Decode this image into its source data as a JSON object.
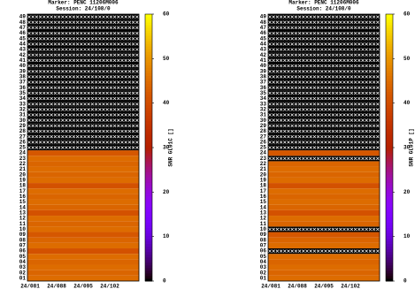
{
  "chart_data": [
    {
      "type": "heatmap",
      "title": "Marker: PENC 11206M006",
      "subtitle": "Session: 24/108/0",
      "y_categories": [
        "01",
        "02",
        "03",
        "04",
        "05",
        "06",
        "07",
        "08",
        "09",
        "10",
        "11",
        "12",
        "13",
        "14",
        "15",
        "16",
        "17",
        "18",
        "19",
        "20",
        "21",
        "22",
        "23",
        "24",
        "25",
        "26",
        "27",
        "28",
        "29",
        "30",
        "31",
        "32",
        "33",
        "34",
        "35",
        "36",
        "37",
        "38",
        "39",
        "40",
        "41",
        "42",
        "43",
        "44",
        "45",
        "46",
        "47",
        "48",
        "49"
      ],
      "x_labels": [
        "24/081",
        "24/088",
        "24/095",
        "24/102"
      ],
      "values": [
        45,
        44,
        45,
        44,
        45,
        41,
        45,
        44,
        42,
        45,
        44,
        45,
        41,
        44,
        45,
        44,
        45,
        41,
        45,
        44,
        45,
        44,
        45,
        42,
        null,
        null,
        null,
        null,
        null,
        null,
        null,
        null,
        null,
        null,
        null,
        null,
        null,
        null,
        null,
        null,
        null,
        null,
        null,
        null,
        null,
        null,
        null,
        null,
        null
      ],
      "zlim": [
        0,
        60
      ],
      "zticks": [
        0,
        10,
        20,
        30,
        40,
        50,
        60
      ],
      "colorbar_label": "SNR GL01C []"
    },
    {
      "type": "heatmap",
      "title": "Marker: PENC 11206M006",
      "subtitle": "Session: 24/108/0",
      "y_categories": [
        "01",
        "02",
        "03",
        "04",
        "05",
        "06",
        "07",
        "08",
        "09",
        "10",
        "11",
        "12",
        "13",
        "14",
        "15",
        "16",
        "17",
        "18",
        "19",
        "20",
        "21",
        "22",
        "23",
        "24",
        "25",
        "26",
        "27",
        "28",
        "29",
        "30",
        "31",
        "32",
        "33",
        "34",
        "35",
        "36",
        "37",
        "38",
        "39",
        "40",
        "41",
        "42",
        "43",
        "44",
        "45",
        "46",
        "47",
        "48",
        "49"
      ],
      "x_labels": [
        "24/081",
        "24/088",
        "24/095",
        "24/102"
      ],
      "values": [
        45,
        44,
        45,
        44,
        45,
        null,
        45,
        44,
        42,
        null,
        44,
        45,
        41,
        44,
        45,
        44,
        45,
        41,
        45,
        44,
        45,
        44,
        null,
        42,
        null,
        null,
        null,
        null,
        null,
        null,
        null,
        null,
        null,
        null,
        null,
        null,
        null,
        null,
        null,
        null,
        null,
        null,
        null,
        null,
        null,
        null,
        null,
        null,
        null
      ],
      "zlim": [
        0,
        60
      ],
      "zticks": [
        0,
        10,
        20,
        30,
        40,
        50,
        60
      ],
      "colorbar_label": "SNR GL01P []"
    }
  ]
}
